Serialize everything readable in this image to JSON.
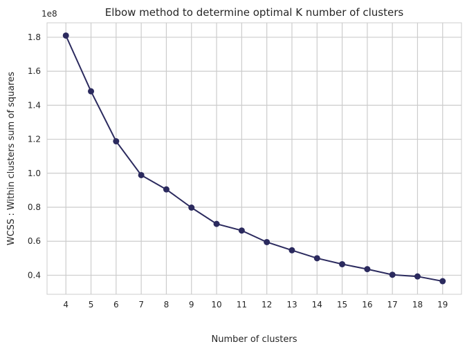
{
  "chart_data": {
    "type": "line",
    "title": "Elbow method to determine optimal K number of clusters",
    "xlabel": "Number of clusters",
    "ylabel": "WCSS : Within clusters sum of squares",
    "y_offset_label": "1e8",
    "x": [
      4,
      5,
      6,
      7,
      8,
      9,
      10,
      11,
      12,
      13,
      14,
      15,
      16,
      17,
      18,
      19
    ],
    "x_tick_labels": [
      "4",
      "5",
      "6",
      "7",
      "8",
      "9",
      "10",
      "11",
      "12",
      "13",
      "14",
      "15",
      "16",
      "17",
      "18",
      "19"
    ],
    "y_ticks": [
      0.4,
      0.6,
      0.8,
      1.0,
      1.2,
      1.4,
      1.6,
      1.8
    ],
    "y_tick_labels": [
      "0.4",
      "0.6",
      "0.8",
      "1.0",
      "1.2",
      "1.4",
      "1.6",
      "1.8"
    ],
    "y_unit_multiplier": 100000000,
    "series": [
      {
        "values": [
          181000000,
          148200000,
          118800000,
          98900000,
          90500000,
          79800000,
          70200000,
          66300000,
          59500000,
          54700000,
          50000000,
          46500000,
          43600000,
          40300000,
          39300000,
          36500000
        ],
        "color": "#2b2a5e",
        "marker": "circle"
      }
    ],
    "xlim": [
      3.25,
      19.75
    ],
    "ylim": [
      28800000,
      188500000
    ],
    "grid": true,
    "background": "#ffffff",
    "grid_color": "#cccccc"
  }
}
